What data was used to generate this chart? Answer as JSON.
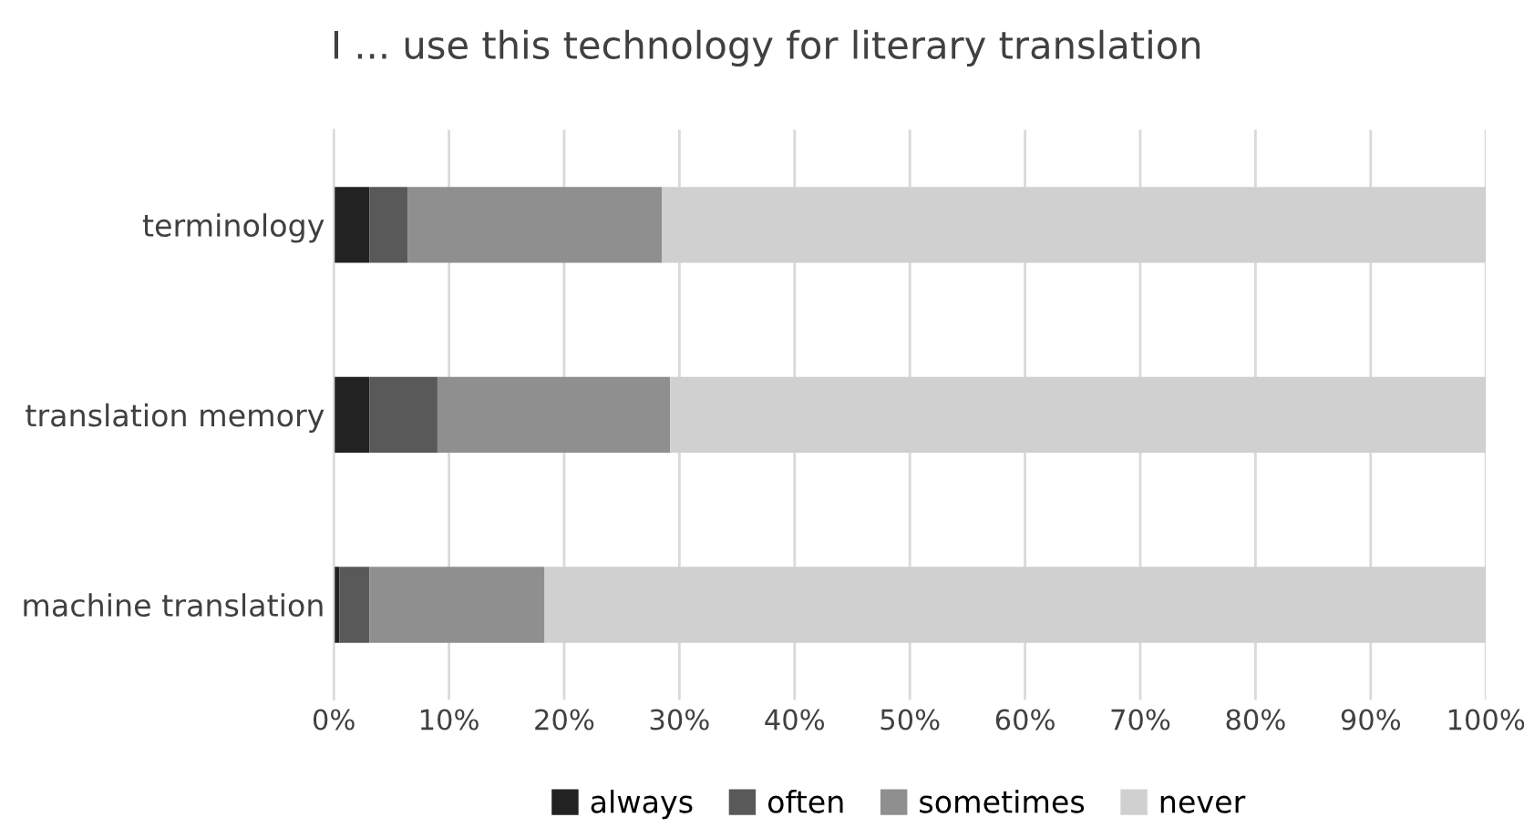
{
  "chart_data": {
    "type": "bar",
    "orientation": "horizontal",
    "stacked": true,
    "title": "I ... use this technology for literary translation",
    "categories": [
      "terminology",
      "translation memory",
      "machine translation"
    ],
    "series": [
      {
        "name": "always",
        "color": "#222222",
        "values": [
          3.1,
          3.1,
          0.5
        ]
      },
      {
        "name": "often",
        "color": "#595959",
        "values": [
          3.3,
          5.9,
          2.6
        ]
      },
      {
        "name": "sometimes",
        "color": "#8f8f8f",
        "values": [
          22.1,
          20.2,
          15.2
        ]
      },
      {
        "name": "never",
        "color": "#d0d0d0",
        "values": [
          71.5,
          70.8,
          81.7
        ]
      }
    ],
    "xlim": [
      0,
      100
    ],
    "xticks": [
      {
        "value": 0,
        "label": "0%"
      },
      {
        "value": 10,
        "label": "10%"
      },
      {
        "value": 20,
        "label": "20%"
      },
      {
        "value": 30,
        "label": "30%"
      },
      {
        "value": 40,
        "label": "40%"
      },
      {
        "value": 50,
        "label": "50%"
      },
      {
        "value": 60,
        "label": "60%"
      },
      {
        "value": 70,
        "label": "70%"
      },
      {
        "value": 80,
        "label": "80%"
      },
      {
        "value": 90,
        "label": "90%"
      },
      {
        "value": 100,
        "label": "100%"
      }
    ],
    "grid": "x",
    "legend": "bottom"
  }
}
